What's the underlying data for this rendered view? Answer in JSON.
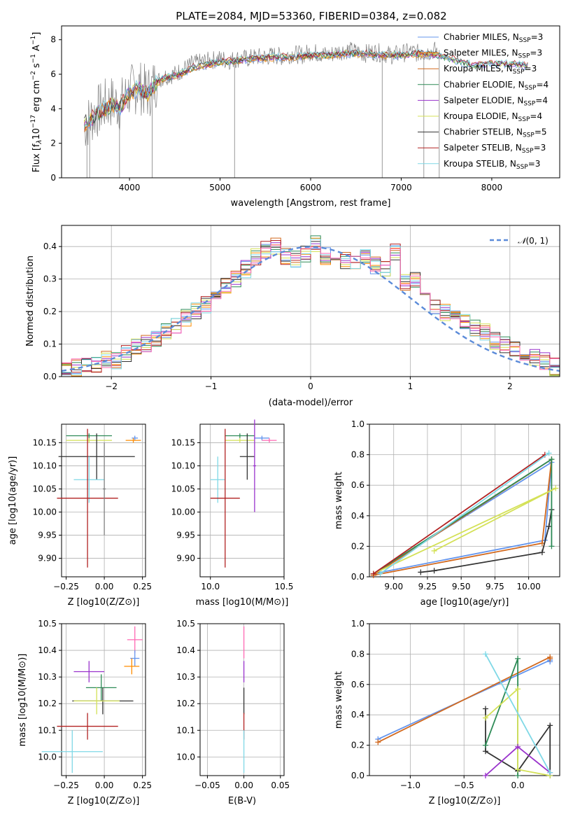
{
  "chart_data": [
    {
      "id": "spectrum",
      "type": "line",
      "title": "PLATE=2084, MJD=53360, FIBERID=0384, z=0.082",
      "xlabel": "wavelength [Angstrom, rest frame]",
      "ylabel": "Flux [f_λ 10^-17 erg cm^-2 s^-1 A^-1]",
      "xlim": [
        3250,
        8750
      ],
      "ylim": [
        0,
        8.8
      ],
      "xticks": [
        4000,
        5000,
        6000,
        7000,
        8000
      ],
      "yticks": [
        0,
        2,
        4,
        6,
        8
      ],
      "grid": false,
      "legend_position": "right",
      "observed_flux": {
        "color": "#808080",
        "x": [
          3500,
          3600,
          3700,
          3800,
          3900,
          4000,
          4100,
          4200,
          4300,
          4400,
          4500,
          4600,
          4700,
          4800,
          4900,
          5000,
          5100,
          5200,
          5300,
          5400,
          5500,
          5600,
          5700,
          5800,
          5900,
          6000,
          6100,
          6200,
          6300,
          6400,
          6500,
          6600,
          6700,
          6800,
          6900,
          7000,
          7100,
          7200,
          7300,
          7400
        ],
        "y": [
          3.0,
          3.6,
          4.1,
          4.4,
          4.2,
          5.0,
          5.3,
          4.9,
          5.6,
          5.9,
          6.0,
          6.3,
          6.6,
          6.7,
          6.8,
          6.9,
          6.8,
          6.9,
          6.9,
          7.0,
          7.0,
          7.1,
          7.0,
          7.2,
          7.1,
          7.3,
          7.2,
          7.1,
          7.3,
          7.4,
          7.3,
          7.2,
          7.3,
          7.2,
          7.1,
          7.2,
          7.3,
          7.2,
          7.3,
          7.4
        ]
      },
      "model_spectrum": {
        "x": [
          3500,
          3600,
          3700,
          3800,
          3900,
          4000,
          4100,
          4200,
          4300,
          4400,
          4500,
          4600,
          4700,
          4800,
          4900,
          5000,
          5200,
          5400,
          5600,
          5800,
          6000,
          6200,
          6400,
          6600,
          6800,
          7000,
          7200,
          7400,
          7600,
          7800,
          8000,
          8200,
          8400
        ],
        "y": [
          3.1,
          3.5,
          3.9,
          4.2,
          4.1,
          4.9,
          5.2,
          4.8,
          5.5,
          5.8,
          5.9,
          6.1,
          6.4,
          6.5,
          6.6,
          6.7,
          6.8,
          6.9,
          7.0,
          7.0,
          7.1,
          7.1,
          7.2,
          7.2,
          7.1,
          7.1,
          7.2,
          7.1,
          6.8,
          6.5,
          6.6,
          6.6,
          6.5
        ]
      },
      "series": [
        {
          "name": "Chabrier MILES, N_SSP=3",
          "color": "#6495ed"
        },
        {
          "name": "Salpeter MILES, N_SSP=3",
          "color": "#ff8c00"
        },
        {
          "name": "Kroupa MILES, N_SSP=3",
          "color": "#d2691e"
        },
        {
          "name": "Chabrier ELODIE, N_SSP=4",
          "color": "#2e8b57"
        },
        {
          "name": "Salpeter ELODIE, N_SSP=4",
          "color": "#9932cc"
        },
        {
          "name": "Kroupa ELODIE, N_SSP=4",
          "color": "#d4e157"
        },
        {
          "name": "Chabrier STELIB, N_SSP=5",
          "color": "#333333"
        },
        {
          "name": "Salpeter STELIB, N_SSP=3",
          "color": "#b22222"
        },
        {
          "name": "Kroupa STELIB, N_SSP=3",
          "color": "#7fd8e6"
        }
      ],
      "legend": [
        {
          "pre": "Chabrier MILES, N",
          "sub": "SSP",
          "post": "=3"
        },
        {
          "pre": "Salpeter MILES, N",
          "sub": "SSP",
          "post": "=3"
        },
        {
          "pre": "Kroupa MILES, N",
          "sub": "SSP",
          "post": "=3"
        },
        {
          "pre": "Chabrier ELODIE, N",
          "sub": "SSP",
          "post": "=4"
        },
        {
          "pre": "Salpeter ELODIE, N",
          "sub": "SSP",
          "post": "=4"
        },
        {
          "pre": "Kroupa ELODIE, N",
          "sub": "SSP",
          "post": "=4"
        },
        {
          "pre": "Chabrier STELIB, N",
          "sub": "SSP",
          "post": "=5"
        },
        {
          "pre": "Salpeter STELIB, N",
          "sub": "SSP",
          "post": "=3"
        },
        {
          "pre": "Kroupa STELIB, N",
          "sub": "SSP",
          "post": "=3"
        }
      ]
    },
    {
      "id": "residuals",
      "type": "bar",
      "xlabel": "(data-model)/error",
      "ylabel": "Normed distribution",
      "xlim": [
        -2.5,
        2.5
      ],
      "ylim": [
        0,
        0.465
      ],
      "xticks": [
        -2,
        -1,
        0,
        1,
        2
      ],
      "yticks": [
        0.0,
        0.1,
        0.2,
        0.3,
        0.4
      ],
      "grid": true,
      "bin_edges": [
        -2.5,
        -2.4,
        -2.3,
        -2.2,
        -2.1,
        -2.0,
        -1.9,
        -1.8,
        -1.7,
        -1.6,
        -1.5,
        -1.4,
        -1.3,
        -1.2,
        -1.1,
        -1.0,
        -0.9,
        -0.8,
        -0.7,
        -0.6,
        -0.5,
        -0.4,
        -0.3,
        -0.2,
        -0.1,
        0.0,
        0.1,
        0.2,
        0.3,
        0.4,
        0.5,
        0.6,
        0.7,
        0.8,
        0.9,
        1.0,
        1.1,
        1.2,
        1.3,
        1.4,
        1.5,
        1.6,
        1.7,
        1.8,
        1.9,
        2.0,
        2.1,
        2.2,
        2.3,
        2.4,
        2.5
      ],
      "histogram_values": [
        0.02,
        0.03,
        0.03,
        0.04,
        0.05,
        0.05,
        0.07,
        0.09,
        0.1,
        0.12,
        0.14,
        0.16,
        0.18,
        0.2,
        0.22,
        0.24,
        0.28,
        0.3,
        0.33,
        0.37,
        0.39,
        0.4,
        0.37,
        0.36,
        0.38,
        0.41,
        0.37,
        0.38,
        0.36,
        0.35,
        0.37,
        0.34,
        0.33,
        0.38,
        0.29,
        0.3,
        0.25,
        0.22,
        0.2,
        0.18,
        0.17,
        0.15,
        0.14,
        0.11,
        0.1,
        0.08,
        0.07,
        0.06,
        0.05,
        0.03
      ],
      "variation_amplitude": 0.028,
      "reference_curve": {
        "name": "N(0,1)",
        "label_prefix": "𝒩",
        "label_suffix": "(0, 1)",
        "color": "#5b8bd9",
        "style": "dashed"
      },
      "series_colors": [
        "#6495ed",
        "#ff8c00",
        "#d2691e",
        "#2e8b57",
        "#9932cc",
        "#d4e157",
        "#333333",
        "#b22222",
        "#7fd8e6",
        "#ff69b4"
      ],
      "series": [
        {
          "name": "Chabrier MILES"
        },
        {
          "name": "Salpeter MILES"
        },
        {
          "name": "Kroupa MILES"
        },
        {
          "name": "Chabrier ELODIE"
        },
        {
          "name": "Salpeter ELODIE"
        },
        {
          "name": "Kroupa ELODIE"
        },
        {
          "name": "Chabrier STELIB"
        },
        {
          "name": "Salpeter STELIB"
        },
        {
          "name": "Kroupa STELIB"
        }
      ]
    },
    {
      "id": "age_vs_Z",
      "type": "scatter",
      "xlabel": "Z [log10(Z/Z⊙)]",
      "ylabel": "age [log10(age/yr)]",
      "xlim": [
        -0.28,
        0.27
      ],
      "ylim": [
        9.86,
        10.19
      ],
      "xticks": [
        -0.25,
        0.0,
        0.25
      ],
      "xtick_labels": [
        "−0.25",
        "0.00",
        "0.25"
      ],
      "yticks": [
        9.9,
        9.95,
        10.0,
        10.05,
        10.1,
        10.15
      ],
      "ytick_labels": [
        "9.90",
        "9.95",
        "10.00",
        "10.05",
        "10.10",
        "10.15"
      ],
      "grid": true,
      "points": [
        {
          "x": 0.2,
          "y": 10.16,
          "xerr": 0.02,
          "yerr": 0.005,
          "color": "#6495ed"
        },
        {
          "x": 0.19,
          "y": 10.155,
          "xerr": 0.05,
          "yerr": 0.005,
          "color": "#ff8c00"
        },
        {
          "x": -0.1,
          "y": 10.165,
          "xerr": 0.15,
          "yerr": 0.005,
          "color": "#2e8b57"
        },
        {
          "x": -0.1,
          "y": 10.155,
          "xerr": 0.15,
          "yerr": 0.005,
          "color": "#d4e157"
        },
        {
          "x": -0.05,
          "y": 10.12,
          "xerr": 0.25,
          "yerr": 0.05,
          "color": "#333333"
        },
        {
          "x": -0.1,
          "y": 10.07,
          "xerr": 0.1,
          "yerr": 0.05,
          "color": "#7fd8e6"
        },
        {
          "x": -0.11,
          "y": 10.03,
          "xerr": 0.2,
          "yerr": 0.15,
          "color": "#b22222"
        },
        {
          "x": 0.0,
          "y": 10.05,
          "xerr": 0.01,
          "yerr": 0.1,
          "color": "#808080"
        }
      ]
    },
    {
      "id": "age_vs_mass",
      "type": "scatter",
      "xlabel": "mass [log10(M/M⊙)]",
      "ylabel": "",
      "xlim": [
        9.93,
        10.5
      ],
      "ylim": [
        9.86,
        10.19
      ],
      "xticks": [
        10.0,
        10.5
      ],
      "xtick_labels": [
        "10.0",
        "10.5"
      ],
      "yticks": [
        9.9,
        9.95,
        10.0,
        10.05,
        10.1,
        10.15
      ],
      "ytick_labels": [
        "9.90",
        "9.95",
        "10.00",
        "10.05",
        "10.10",
        "10.15"
      ],
      "grid": true,
      "points": [
        {
          "x": 10.35,
          "y": 10.16,
          "xerr": 0.05,
          "yerr": 0.005,
          "color": "#6495ed"
        },
        {
          "x": 10.4,
          "y": 10.155,
          "xerr": 0.05,
          "yerr": 0.005,
          "color": "#ff69b4"
        },
        {
          "x": 10.2,
          "y": 10.165,
          "xerr": 0.1,
          "yerr": 0.005,
          "color": "#2e8b57"
        },
        {
          "x": 10.2,
          "y": 10.155,
          "xerr": 0.1,
          "yerr": 0.005,
          "color": "#d4e157"
        },
        {
          "x": 10.25,
          "y": 10.12,
          "xerr": 0.05,
          "yerr": 0.05,
          "color": "#333333"
        },
        {
          "x": 10.05,
          "y": 10.07,
          "xerr": 0.05,
          "yerr": 0.05,
          "color": "#7fd8e6"
        },
        {
          "x": 10.1,
          "y": 10.03,
          "xerr": 0.1,
          "yerr": 0.15,
          "color": "#b22222"
        },
        {
          "x": 10.3,
          "y": 10.1,
          "xerr": 0.01,
          "yerr": 0.1,
          "color": "#9932cc"
        }
      ]
    },
    {
      "id": "massweight_vs_age",
      "type": "line",
      "xlabel": "age [log10(age/yr)]",
      "ylabel": "mass weight",
      "xlim": [
        8.82,
        10.23
      ],
      "ylim": [
        0,
        1.0
      ],
      "xticks": [
        9.0,
        9.25,
        9.5,
        9.75,
        10.0
      ],
      "xtick_labels": [
        "9.00",
        "9.25",
        "9.50",
        "9.75",
        "10.00"
      ],
      "yticks": [
        0.0,
        0.2,
        0.4,
        0.6,
        0.8,
        1.0
      ],
      "ytick_labels": [
        "0.0",
        "0.2",
        "0.4",
        "0.6",
        "0.8",
        "1.0"
      ],
      "grid": true,
      "series": [
        {
          "color": "#6495ed",
          "x": [
            8.85,
            10.12,
            10.17,
            8.85
          ],
          "y": [
            0.02,
            0.24,
            0.75,
            0.02
          ]
        },
        {
          "color": "#d2691e",
          "x": [
            8.85,
            10.1,
            10.17,
            8.85
          ],
          "y": [
            0.01,
            0.22,
            0.77,
            0.01
          ]
        },
        {
          "color": "#333333",
          "x": [
            9.2,
            9.3,
            10.1,
            10.15,
            10.17
          ],
          "y": [
            0.03,
            0.04,
            0.16,
            0.33,
            0.44
          ]
        },
        {
          "color": "#2e8b57",
          "x": [
            8.85,
            10.17,
            10.17
          ],
          "y": [
            0.02,
            0.77,
            0.2
          ]
        },
        {
          "color": "#d4e157",
          "x": [
            8.85,
            10.2,
            9.3
          ],
          "y": [
            0.02,
            0.58,
            0.17
          ]
        },
        {
          "color": "#b22222",
          "x": [
            8.85,
            10.12
          ],
          "y": [
            0.02,
            0.8
          ]
        },
        {
          "color": "#7fd8e6",
          "x": [
            8.9,
            10.15
          ],
          "y": [
            0.02,
            0.81
          ]
        }
      ]
    },
    {
      "id": "mass_vs_Z",
      "type": "scatter",
      "xlabel": "Z [log10(Z/Z⊙)]",
      "ylabel": "mass [log10(M/M⊙)]",
      "xlim": [
        -0.28,
        0.27
      ],
      "ylim": [
        9.93,
        10.5
      ],
      "xticks": [
        -0.25,
        0.0,
        0.25
      ],
      "xtick_labels": [
        "−0.25",
        "0.00",
        "0.25"
      ],
      "yticks": [
        10.0,
        10.1,
        10.2,
        10.3,
        10.4,
        10.5
      ],
      "ytick_labels": [
        "10.0",
        "10.1",
        "10.2",
        "10.3",
        "10.4",
        "10.5"
      ],
      "grid": true,
      "points": [
        {
          "x": 0.2,
          "y": 10.44,
          "xerr": 0.05,
          "yerr": 0.05,
          "color": "#ff69b4"
        },
        {
          "x": 0.2,
          "y": 10.37,
          "xerr": 0.03,
          "yerr": 0.03,
          "color": "#6495ed"
        },
        {
          "x": 0.18,
          "y": 10.34,
          "xerr": 0.05,
          "yerr": 0.03,
          "color": "#ff8c00"
        },
        {
          "x": -0.1,
          "y": 10.32,
          "xerr": 0.1,
          "yerr": 0.04,
          "color": "#9932cc"
        },
        {
          "x": -0.02,
          "y": 10.26,
          "xerr": 0.1,
          "yerr": 0.05,
          "color": "#2e8b57"
        },
        {
          "x": -0.01,
          "y": 10.21,
          "xerr": 0.2,
          "yerr": 0.05,
          "color": "#333333"
        },
        {
          "x": -0.05,
          "y": 10.21,
          "xerr": 0.15,
          "yerr": 0.05,
          "color": "#d4e157"
        },
        {
          "x": -0.11,
          "y": 10.115,
          "xerr": 0.2,
          "yerr": 0.05,
          "color": "#b22222"
        },
        {
          "x": -0.21,
          "y": 10.02,
          "xerr": 0.2,
          "yerr": 0.08,
          "color": "#7fd8e6"
        }
      ]
    },
    {
      "id": "mass_vs_ebv",
      "type": "scatter",
      "xlabel": "E(B-V)",
      "ylabel": "",
      "xlim": [
        -0.06,
        0.055
      ],
      "ylim": [
        9.93,
        10.5
      ],
      "xticks": [
        -0.05,
        0.0,
        0.05
      ],
      "xtick_labels": [
        "−0.05",
        "0.00",
        "0.05"
      ],
      "yticks": [
        10.0,
        10.1,
        10.2,
        10.3,
        10.4,
        10.5
      ],
      "ytick_labels": [
        "10.0",
        "10.1",
        "10.2",
        "10.3",
        "10.4",
        "10.5"
      ],
      "grid": true,
      "points": [
        {
          "x": 0.0,
          "y": 10.43,
          "xerr": 0,
          "yerr": 0.06,
          "color": "#ff69b4"
        },
        {
          "x": 0.0,
          "y": 10.32,
          "xerr": 0,
          "yerr": 0.04,
          "color": "#9932cc"
        },
        {
          "x": 0.0,
          "y": 10.21,
          "xerr": 0,
          "yerr": 0.05,
          "color": "#333333"
        },
        {
          "x": 0.0,
          "y": 10.115,
          "xerr": 0,
          "yerr": 0.05,
          "color": "#b22222"
        },
        {
          "x": 0.0,
          "y": 10.02,
          "xerr": 0,
          "yerr": 0.08,
          "color": "#7fd8e6"
        }
      ]
    },
    {
      "id": "massweight_vs_Z",
      "type": "line",
      "xlabel": "Z [log10(Z/Z⊙)]",
      "ylabel": "mass weight",
      "xlim": [
        -1.38,
        0.39
      ],
      "ylim": [
        0,
        1.0
      ],
      "xticks": [
        -1.0,
        -0.5,
        0.0
      ],
      "xtick_labels": [
        "−1.0",
        "−0.5",
        "0.0"
      ],
      "yticks": [
        0.0,
        0.2,
        0.4,
        0.6,
        0.8,
        1.0
      ],
      "ytick_labels": [
        "0.0",
        "0.2",
        "0.4",
        "0.6",
        "0.8",
        "1.0"
      ],
      "grid": true,
      "series": [
        {
          "color": "#6495ed",
          "x": [
            -1.3,
            0.3,
            0.3
          ],
          "y": [
            0.24,
            0.76,
            0.75
          ]
        },
        {
          "color": "#d2691e",
          "x": [
            -1.3,
            0.3,
            0.3
          ],
          "y": [
            0.22,
            0.78,
            0.77
          ]
        },
        {
          "color": "#333333",
          "x": [
            -0.3,
            -0.3,
            0.0,
            0.3,
            0.3
          ],
          "y": [
            0.44,
            0.16,
            0.03,
            0.33,
            0.0
          ]
        },
        {
          "color": "#2e8b57",
          "x": [
            -0.3,
            0.0,
            0.0
          ],
          "y": [
            0.2,
            0.77,
            0.0
          ]
        },
        {
          "color": "#d4e157",
          "x": [
            -0.3,
            0.0,
            0.0,
            0.3
          ],
          "y": [
            0.38,
            0.57,
            0.04,
            0.0
          ]
        },
        {
          "color": "#9932cc",
          "x": [
            -0.3,
            0.0,
            0.3
          ],
          "y": [
            0.0,
            0.19,
            0.02
          ]
        },
        {
          "color": "#7fd8e6",
          "x": [
            -0.3,
            0.3
          ],
          "y": [
            0.8,
            0.02
          ]
        }
      ]
    }
  ]
}
